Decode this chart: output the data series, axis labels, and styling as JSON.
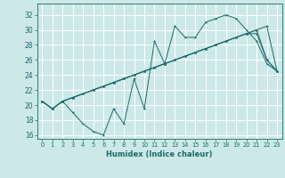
{
  "xlabel": "Humidex (Indice chaleur)",
  "ylabel": "",
  "xlim": [
    -0.5,
    23.5
  ],
  "ylim": [
    15.5,
    33.5
  ],
  "yticks": [
    16,
    18,
    20,
    22,
    24,
    26,
    28,
    30,
    32
  ],
  "xticks": [
    0,
    1,
    2,
    3,
    4,
    5,
    6,
    7,
    8,
    9,
    10,
    11,
    12,
    13,
    14,
    15,
    16,
    17,
    18,
    19,
    20,
    21,
    22,
    23
  ],
  "bg_color": "#cce8e8",
  "grid_color": "#ffffff",
  "line_color": "#1a6b6b",
  "series": [
    [
      20.5,
      19.5,
      20.5,
      19.0,
      17.5,
      16.5,
      16.0,
      19.5,
      17.5,
      23.5,
      19.5,
      28.5,
      25.5,
      30.5,
      29.0,
      29.0,
      31.0,
      31.5,
      32.0,
      31.5,
      30.0,
      28.5,
      25.5,
      24.5
    ],
    [
      20.5,
      19.5,
      20.5,
      21.0,
      21.5,
      22.0,
      22.5,
      23.0,
      23.5,
      24.0,
      24.5,
      25.0,
      25.5,
      26.0,
      26.5,
      27.0,
      27.5,
      28.0,
      28.5,
      29.0,
      29.5,
      30.0,
      30.5,
      24.5
    ],
    [
      20.5,
      19.5,
      20.5,
      21.0,
      21.5,
      22.0,
      22.5,
      23.0,
      23.5,
      24.0,
      24.5,
      25.0,
      25.5,
      26.0,
      26.5,
      27.0,
      27.5,
      28.0,
      28.5,
      29.0,
      29.5,
      30.0,
      26.0,
      24.5
    ],
    [
      20.5,
      19.5,
      20.5,
      21.0,
      21.5,
      22.0,
      22.5,
      23.0,
      23.5,
      24.0,
      24.5,
      25.0,
      25.5,
      26.0,
      26.5,
      27.0,
      27.5,
      28.0,
      28.5,
      29.0,
      29.5,
      29.5,
      26.0,
      24.5
    ]
  ]
}
